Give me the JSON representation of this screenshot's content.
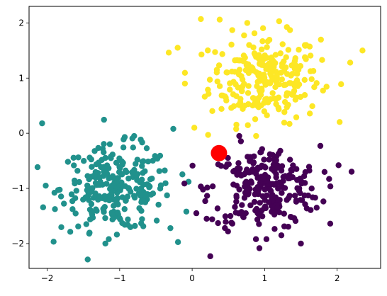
{
  "chart_data": {
    "type": "scatter",
    "title": "",
    "xlabel": "",
    "ylabel": "",
    "xlim": [
      -2.25,
      2.6
    ],
    "ylim": [
      -2.45,
      2.3
    ],
    "xticks": [
      -2,
      -1,
      0,
      1,
      2
    ],
    "yticks": [
      -2,
      -1,
      0,
      1,
      2
    ],
    "xtick_labels": [
      "−2",
      "−1",
      "0",
      "1",
      "2"
    ],
    "ytick_labels": [
      "−2",
      "−1",
      "0",
      "1",
      "2"
    ],
    "grid": false,
    "legend": "none",
    "series": [
      {
        "color": "#fde725",
        "center": [
          1.0,
          1.0
        ],
        "spread": [
          0.38,
          0.4
        ],
        "count": 250,
        "notable_points": [
          [
            0.12,
            2.07
          ],
          [
            0.38,
            2.06
          ],
          [
            -0.2,
            1.55
          ],
          [
            2.35,
            1.5
          ],
          [
            2.18,
            1.28
          ],
          [
            -0.1,
            0.9
          ],
          [
            0.22,
            -0.03
          ],
          [
            0.03,
            0.1
          ],
          [
            1.2,
            2.03
          ],
          [
            1.35,
            1.87
          ]
        ]
      },
      {
        "color": "#21918c",
        "center": [
          -1.05,
          -1.0
        ],
        "spread": [
          0.38,
          0.38
        ],
        "count": 250,
        "notable_points": [
          [
            -2.07,
            0.18
          ],
          [
            -2.02,
            -0.95
          ],
          [
            -0.26,
            0.08
          ],
          [
            -1.15,
            -1.92
          ],
          [
            -1.42,
            -1.82
          ],
          [
            -0.3,
            -1.72
          ],
          [
            -0.05,
            -0.88
          ],
          [
            -0.08,
            -1.42
          ],
          [
            -0.8,
            -0.05
          ]
        ]
      },
      {
        "color": "#440154",
        "center": [
          1.0,
          -1.0
        ],
        "spread": [
          0.38,
          0.38
        ],
        "count": 250,
        "notable_points": [
          [
            0.25,
            -2.23
          ],
          [
            1.5,
            -2.0
          ],
          [
            2.02,
            -0.58
          ],
          [
            1.35,
            -0.48
          ],
          [
            0.65,
            -0.05
          ],
          [
            0.15,
            -1.02
          ],
          [
            0.2,
            -1.55
          ],
          [
            0.88,
            -1.92
          ]
        ]
      }
    ],
    "highlight": {
      "x": 0.37,
      "y": -0.36,
      "color": "#ff0000"
    }
  }
}
